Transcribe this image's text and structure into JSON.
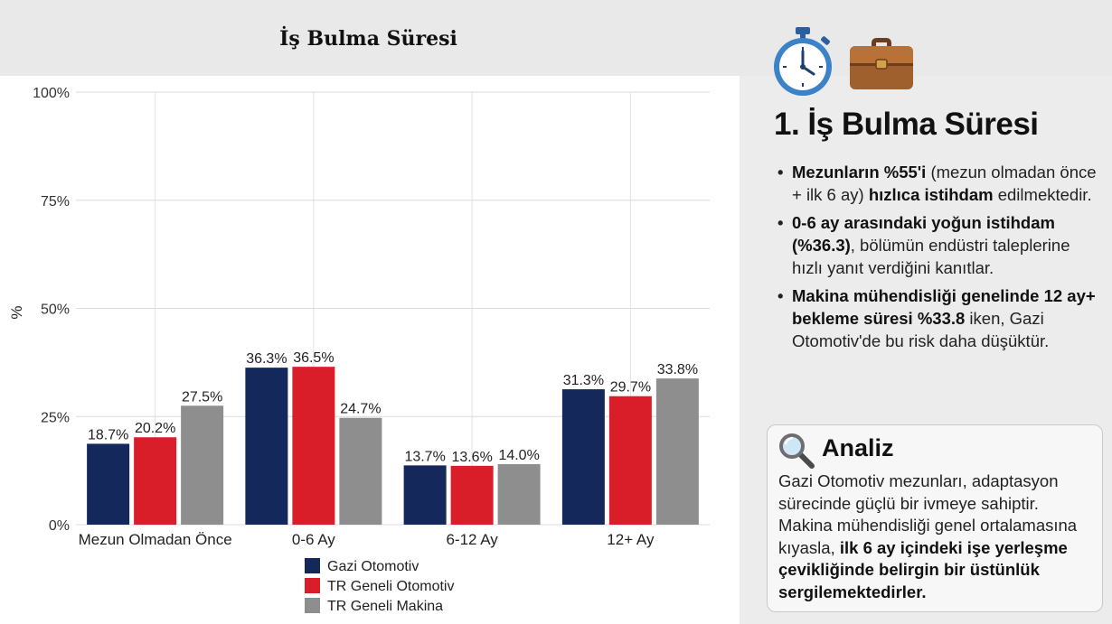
{
  "title": "İş Bulma Süresi",
  "colors": {
    "gazi": "#14285b",
    "tr_oto": "#d91e2a",
    "tr_makina": "#8e8e8e"
  },
  "chart_data": {
    "type": "bar",
    "title": "İş Bulma Süresi",
    "xlabel": "",
    "ylabel": "%",
    "ylim": [
      0,
      100
    ],
    "yticks": [
      "0%",
      "25%",
      "50%",
      "75%",
      "100%"
    ],
    "ytick_values": [
      0,
      25,
      50,
      75,
      100
    ],
    "categories": [
      "Mezun Olmadan Önce",
      "0-6 Ay",
      "6-12 Ay",
      "12+ Ay"
    ],
    "series": [
      {
        "name": "Gazi Otomotiv",
        "color": "#14285b",
        "values": [
          18.7,
          36.3,
          13.7,
          31.3
        ],
        "labels": [
          "18.7%",
          "36.3%",
          "13.7%",
          "31.3%"
        ]
      },
      {
        "name": "TR Geneli Otomotiv",
        "color": "#d91e2a",
        "values": [
          20.2,
          36.5,
          13.6,
          29.7
        ],
        "labels": [
          "20.2%",
          "36.5%",
          "13.6%",
          "29.7%"
        ]
      },
      {
        "name": "TR Geneli Makina",
        "color": "#8e8e8e",
        "values": [
          27.5,
          24.7,
          14.0,
          33.8
        ],
        "labels": [
          "27.5%",
          "24.7%",
          "14.0%",
          "33.8%"
        ]
      }
    ],
    "grid": true,
    "legend": "bottom"
  },
  "side": {
    "icons": [
      "stopwatch-icon",
      "briefcase-icon"
    ],
    "heading": "1. İş Bulma Süresi",
    "bullets": [
      {
        "b1": "Mezunların %55'i",
        "t1": " (mezun olmadan önce + ilk 6 ay) ",
        "b2": "hızlıca istihdam",
        "t2": " edilmektedir."
      },
      {
        "b1": "0-6 ay arasındaki yoğun istihdam (%36.3)",
        "t1": ", bölümün endüstri taleplerine hızlı yanıt verdiğini kanıtlar."
      },
      {
        "b1": "Makina mühendisliği genelinde 12 ay+ bekleme süresi %33.8",
        "t1": " iken, Gazi Otomotiv'de bu risk daha düşüktür."
      }
    ]
  },
  "analysis": {
    "icon": "magnifier-icon",
    "title": "Analiz",
    "text": "Gazi Otomotiv mezunları, adaptasyon sürecinde güçlü bir ivmeye sahiptir. Makina mühendisliği genel ortalamasına kıyasla, ",
    "bold": "ilk 6 ay içindeki işe yerleşme çevikliğinde belirgin bir üstünlük sergilemektedirler."
  }
}
